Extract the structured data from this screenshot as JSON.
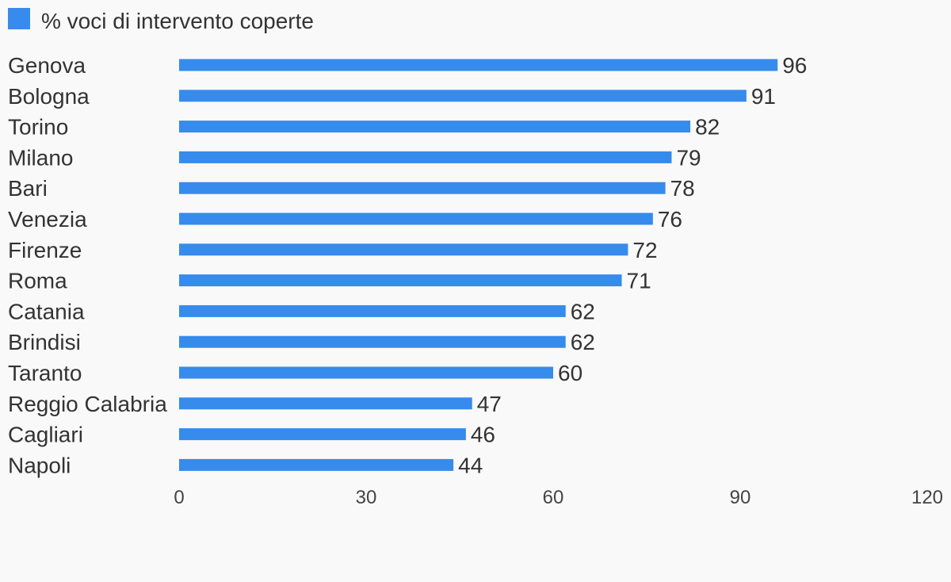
{
  "chart_data": {
    "type": "bar",
    "orientation": "horizontal",
    "legend": {
      "placement": "top-left",
      "color": "#368bec"
    },
    "categories": [
      "Genova",
      "Bologna",
      "Torino",
      "Milano",
      "Bari",
      "Venezia",
      "Firenze",
      "Roma",
      "Catania",
      "Brindisi",
      "Taranto",
      "Reggio Calabria",
      "Cagliari",
      "Napoli"
    ],
    "series": [
      {
        "name": "% voci di intervento coperte",
        "color": "#368bec",
        "values": [
          96,
          91,
          82,
          79,
          78,
          76,
          72,
          71,
          62,
          62,
          60,
          47,
          46,
          44
        ]
      }
    ],
    "xlim": [
      0,
      120
    ],
    "x_ticks": [
      "0",
      "30",
      "60",
      "90",
      "120"
    ],
    "grid": false,
    "data_labels": true
  }
}
